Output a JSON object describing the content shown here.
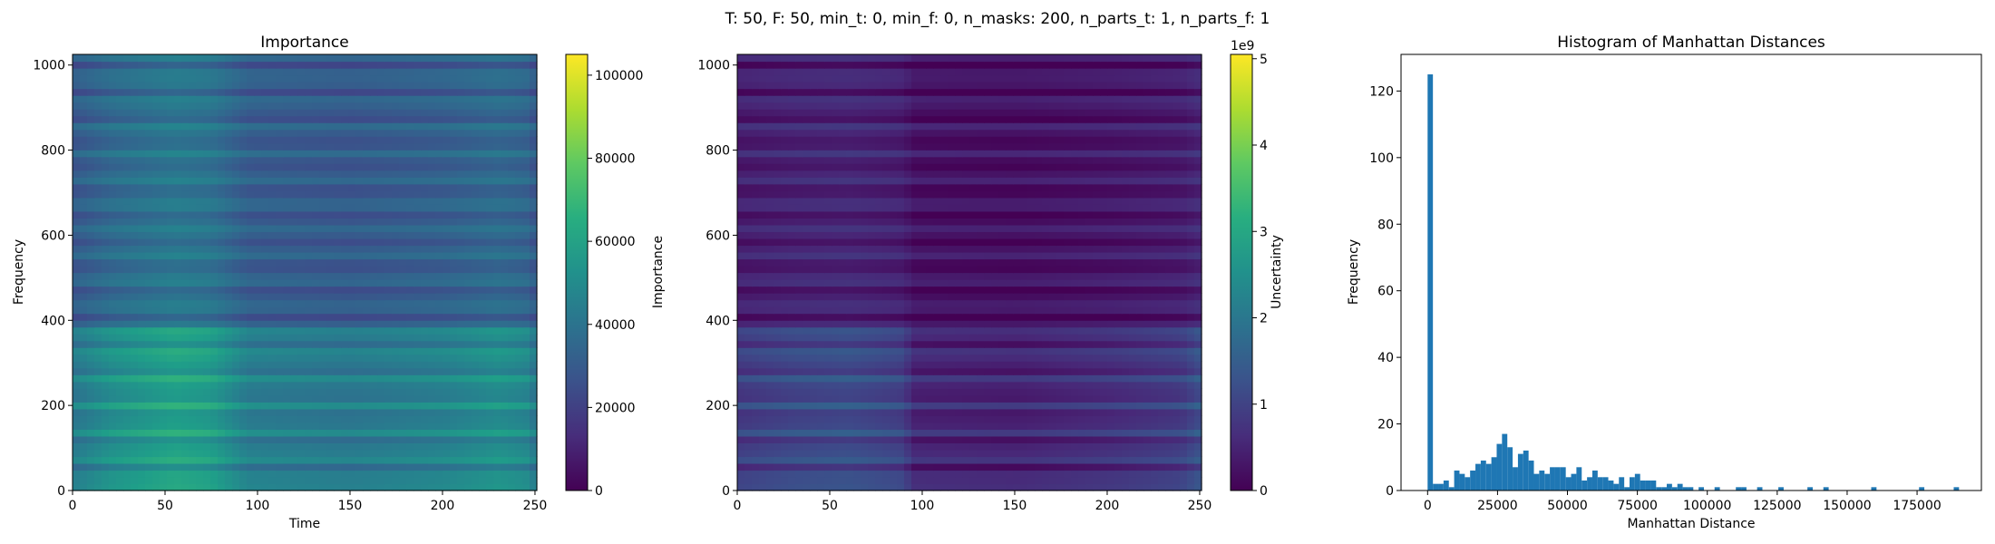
{
  "suptitle": "T: 50, F: 50, min_t: 0, min_f: 0, n_masks: 200, n_parts_t: 1, n_parts_f: 1",
  "chart_data": [
    {
      "type": "heatmap",
      "title": "Importance",
      "xlabel": "Time",
      "ylabel": "Frequency",
      "xlim": [
        0,
        251
      ],
      "ylim": [
        0,
        1025
      ],
      "xticks": [
        0,
        50,
        100,
        150,
        200,
        250
      ],
      "yticks": [
        0,
        200,
        400,
        600,
        800,
        1000
      ],
      "colormap": "viridis",
      "colorbar": {
        "label": "Importance",
        "range": [
          0,
          105000
        ],
        "ticks": [
          0,
          20000,
          40000,
          60000,
          80000,
          100000
        ],
        "offset_text": ""
      },
      "bands": {
        "low": {
          "y_range": [
            0,
            390
          ],
          "base": 0.52
        },
        "high": {
          "y_range": [
            390,
            1025
          ],
          "base": 0.36
        }
      },
      "time_profile": [
        [
          0,
          0.78
        ],
        [
          20,
          0.95
        ],
        [
          55,
          1.1
        ],
        [
          75,
          1.05
        ],
        [
          95,
          0.82
        ],
        [
          150,
          0.78
        ],
        [
          200,
          0.85
        ],
        [
          230,
          0.95
        ],
        [
          245,
          0.9
        ],
        [
          251,
          0.75
        ]
      ]
    },
    {
      "type": "heatmap",
      "title": "",
      "xlabel": "",
      "ylabel": "",
      "xlim": [
        0,
        251
      ],
      "ylim": [
        0,
        1025
      ],
      "xticks": [
        0,
        50,
        100,
        150,
        200,
        250
      ],
      "yticks": [
        0,
        200,
        400,
        600,
        800,
        1000
      ],
      "colormap": "viridis",
      "colorbar": {
        "label": "Uncertainty",
        "range": [
          0,
          5.05
        ],
        "ticks": [
          0,
          1,
          2,
          3,
          4,
          5
        ],
        "offset_text": "1e9"
      },
      "bands": {
        "low": {
          "y_range": [
            0,
            390
          ],
          "base": 0.18
        },
        "high": {
          "y_range": [
            390,
            1025
          ],
          "base": 0.08
        }
      },
      "time_profile": [
        [
          0,
          1.0
        ],
        [
          30,
          1.2
        ],
        [
          60,
          1.3
        ],
        [
          90,
          1.1
        ],
        [
          95,
          0.6
        ],
        [
          150,
          0.55
        ],
        [
          200,
          0.75
        ],
        [
          240,
          1.0
        ],
        [
          251,
          1.4
        ]
      ]
    },
    {
      "type": "bar",
      "title": "Histogram of Manhattan Distances",
      "xlabel": "Manhattan Distance",
      "ylabel": "Frequency",
      "xlim": [
        -9500,
        198000
      ],
      "ylim": [
        0,
        131
      ],
      "xticks": [
        0,
        25000,
        50000,
        75000,
        100000,
        125000,
        150000,
        175000
      ],
      "yticks": [
        0,
        20,
        40,
        60,
        80,
        100,
        120
      ],
      "bin_width": 1900,
      "color": "#1f77b4",
      "bins": [
        {
          "x": 0,
          "count": 125
        },
        {
          "x": 1900,
          "count": 2
        },
        {
          "x": 3800,
          "count": 2
        },
        {
          "x": 5700,
          "count": 3
        },
        {
          "x": 7600,
          "count": 1
        },
        {
          "x": 9500,
          "count": 6
        },
        {
          "x": 11400,
          "count": 5
        },
        {
          "x": 13300,
          "count": 4
        },
        {
          "x": 15200,
          "count": 6
        },
        {
          "x": 17100,
          "count": 8
        },
        {
          "x": 19000,
          "count": 9
        },
        {
          "x": 20900,
          "count": 8
        },
        {
          "x": 22800,
          "count": 10
        },
        {
          "x": 24700,
          "count": 14
        },
        {
          "x": 26600,
          "count": 17
        },
        {
          "x": 28500,
          "count": 13
        },
        {
          "x": 30400,
          "count": 7
        },
        {
          "x": 32300,
          "count": 11
        },
        {
          "x": 34200,
          "count": 12
        },
        {
          "x": 36100,
          "count": 9
        },
        {
          "x": 38000,
          "count": 5
        },
        {
          "x": 39900,
          "count": 6
        },
        {
          "x": 41800,
          "count": 5
        },
        {
          "x": 43700,
          "count": 7
        },
        {
          "x": 45600,
          "count": 7
        },
        {
          "x": 47500,
          "count": 7
        },
        {
          "x": 49400,
          "count": 4
        },
        {
          "x": 51300,
          "count": 5
        },
        {
          "x": 53200,
          "count": 7
        },
        {
          "x": 55100,
          "count": 3
        },
        {
          "x": 57000,
          "count": 4
        },
        {
          "x": 58900,
          "count": 6
        },
        {
          "x": 60800,
          "count": 4
        },
        {
          "x": 62700,
          "count": 4
        },
        {
          "x": 64600,
          "count": 3
        },
        {
          "x": 66500,
          "count": 2
        },
        {
          "x": 68400,
          "count": 4
        },
        {
          "x": 70300,
          "count": 1
        },
        {
          "x": 72200,
          "count": 4
        },
        {
          "x": 74100,
          "count": 5
        },
        {
          "x": 76000,
          "count": 3
        },
        {
          "x": 77900,
          "count": 3
        },
        {
          "x": 79800,
          "count": 3
        },
        {
          "x": 81700,
          "count": 1
        },
        {
          "x": 83600,
          "count": 1
        },
        {
          "x": 85500,
          "count": 2
        },
        {
          "x": 87400,
          "count": 1
        },
        {
          "x": 89300,
          "count": 2
        },
        {
          "x": 91200,
          "count": 1
        },
        {
          "x": 93100,
          "count": 1
        },
        {
          "x": 96900,
          "count": 1
        },
        {
          "x": 102600,
          "count": 1
        },
        {
          "x": 110200,
          "count": 1
        },
        {
          "x": 112100,
          "count": 1
        },
        {
          "x": 117800,
          "count": 1
        },
        {
          "x": 125400,
          "count": 1
        },
        {
          "x": 135800,
          "count": 1
        },
        {
          "x": 141500,
          "count": 1
        },
        {
          "x": 158600,
          "count": 1
        },
        {
          "x": 175700,
          "count": 1
        },
        {
          "x": 188100,
          "count": 1
        }
      ]
    }
  ]
}
